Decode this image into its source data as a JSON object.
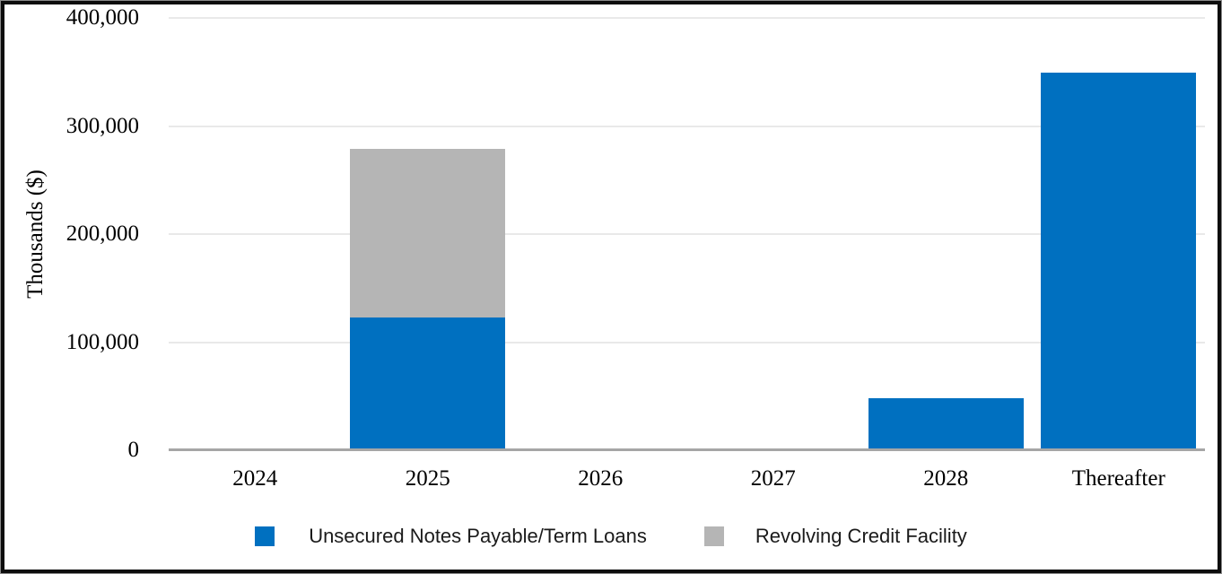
{
  "figure": {
    "background": "#ffffff",
    "border_color": "#0d0d0d",
    "outer_line_color": "#8a8a8a",
    "gridline_color": "#e9e9e9",
    "axis_line_color": "#a6a6a6"
  },
  "chart_data": {
    "type": "bar",
    "stacked": true,
    "title": "",
    "xlabel": "",
    "ylabel": "Thousands ($)",
    "categories": [
      "2024",
      "2025",
      "2026",
      "2027",
      "2028",
      "Thereafter"
    ],
    "series": [
      {
        "name": "Unsecured Notes Payable/Term Loans",
        "color": "#0070C0",
        "values": [
          0,
          123000,
          0,
          0,
          48000,
          349000
        ]
      },
      {
        "name": "Revolving Credit Facility",
        "color": "#B5B5B5",
        "values": [
          0,
          156000,
          0,
          0,
          0,
          0
        ]
      }
    ],
    "ylim": [
      0,
      400000
    ],
    "yticks": [
      0,
      100000,
      200000,
      300000,
      400000
    ],
    "ytick_labels": [
      "0",
      "100,000",
      "200,000",
      "300,000",
      "400,000"
    ],
    "grid": true,
    "legend_position": "bottom"
  }
}
